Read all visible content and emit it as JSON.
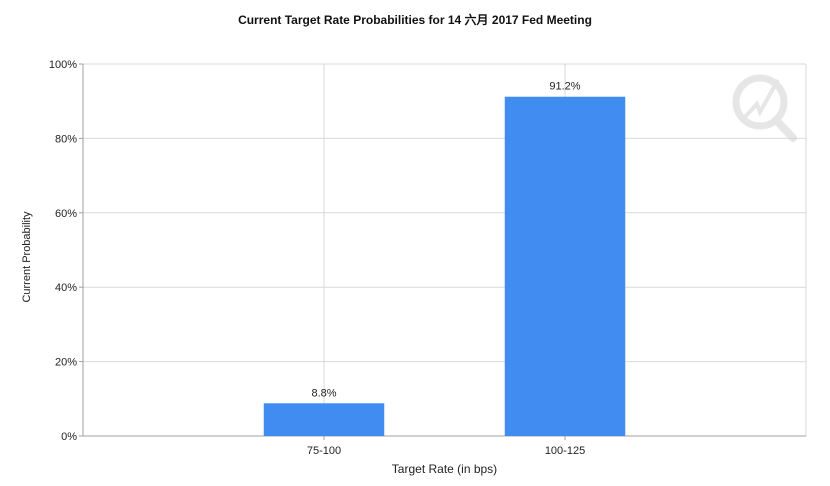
{
  "chart_data": {
    "type": "bar",
    "title": "Current Target Rate Probabilities for 14 六月 2017 Fed Meeting",
    "xlabel": "Target Rate (in bps)",
    "ylabel": "Current Probability",
    "categories": [
      "75-100",
      "100-125"
    ],
    "values": [
      8.8,
      91.2
    ],
    "value_labels": [
      "8.8%",
      "91.2%"
    ],
    "ylim": [
      0,
      100
    ],
    "y_ticks": [
      "0%",
      "20%",
      "40%",
      "60%",
      "80%",
      "100%"
    ],
    "grid": true,
    "legend": "none",
    "bar_color": "#418cf0"
  },
  "colors": {
    "grid": "#d9d9d9",
    "axis": "#a0a0a0",
    "bar": "#418cf0"
  }
}
